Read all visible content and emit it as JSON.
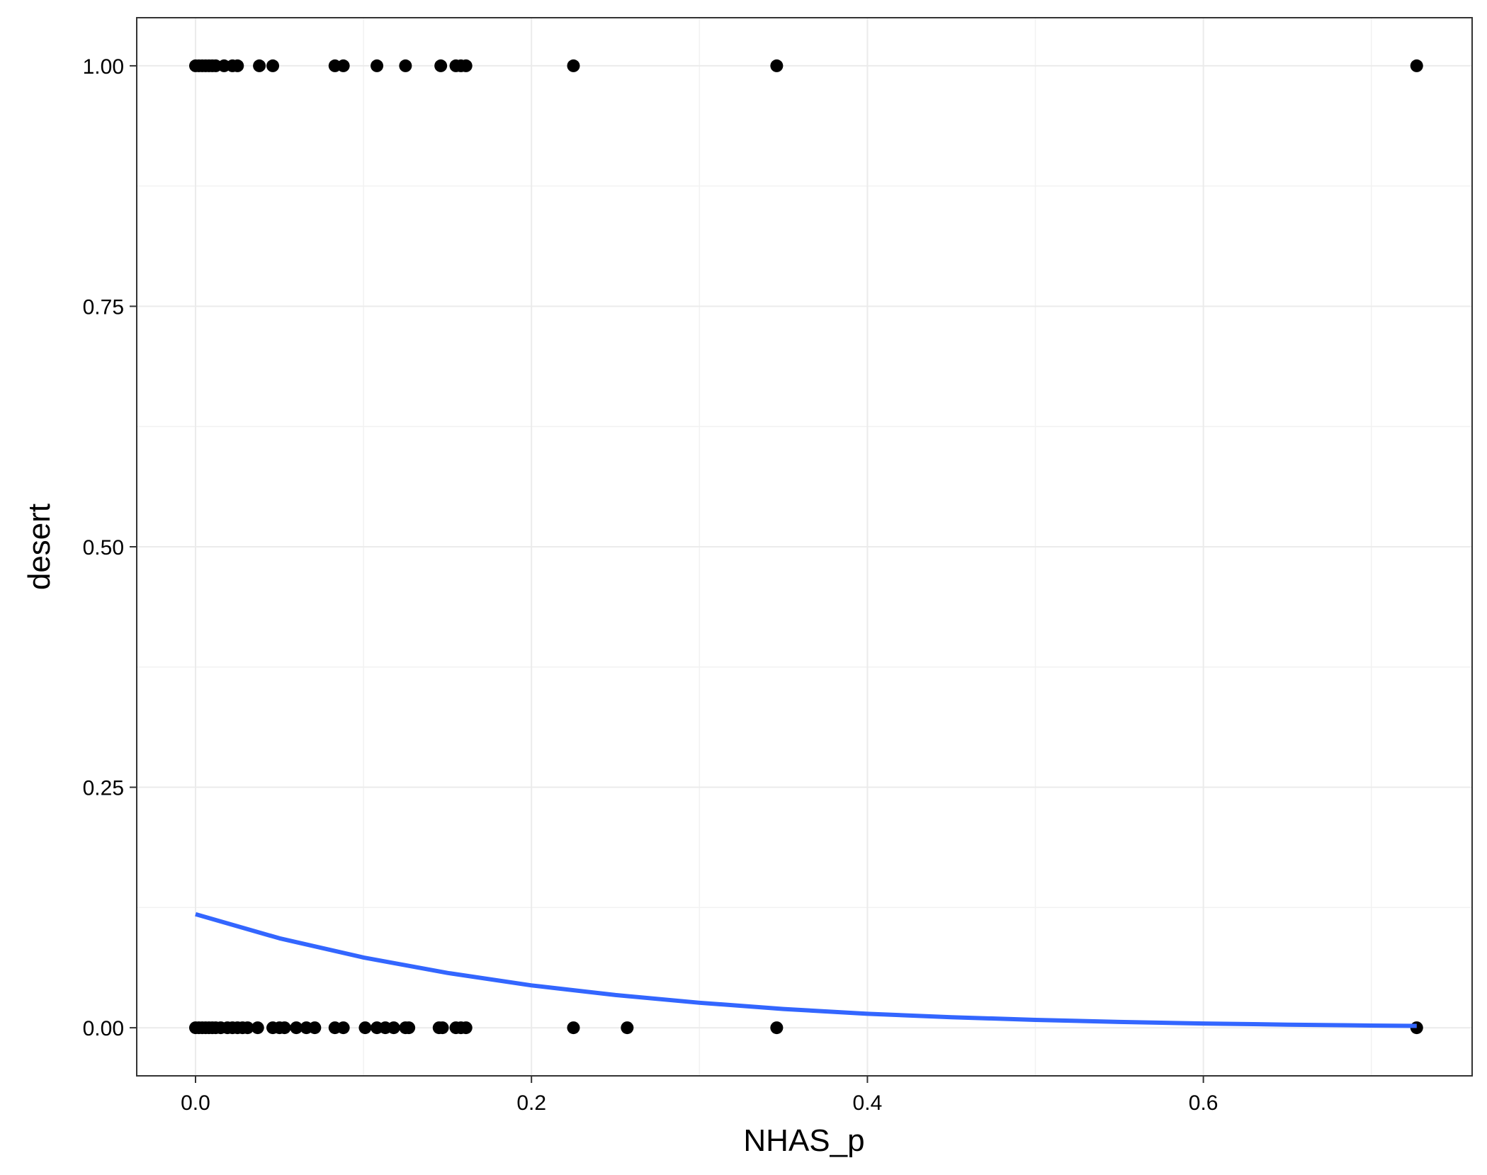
{
  "chart_data": {
    "type": "scatter",
    "title": "",
    "xlabel": "NHAS_p",
    "ylabel": "desert",
    "xlim": [
      -0.035,
      0.76
    ],
    "ylim": [
      -0.05,
      1.05
    ],
    "x_ticks": [
      0.0,
      0.2,
      0.4,
      0.6
    ],
    "x_tick_labels": [
      "0.0",
      "0.2",
      "0.4",
      "0.6"
    ],
    "x_minor_ticks": [
      0.1,
      0.3,
      0.5,
      0.7
    ],
    "y_ticks": [
      0.0,
      0.25,
      0.5,
      0.75,
      1.0
    ],
    "y_tick_labels": [
      "0.00",
      "0.25",
      "0.50",
      "0.75",
      "1.00"
    ],
    "y_minor_ticks": [
      0.125,
      0.375,
      0.625,
      0.875
    ],
    "grid": true,
    "point_color": "#000000",
    "line_color": "#3366FF",
    "series": [
      {
        "type": "scatter",
        "y": 1,
        "x": [
          0.0,
          0.002,
          0.004,
          0.006,
          0.008,
          0.01,
          0.012,
          0.017,
          0.022,
          0.025,
          0.038,
          0.046,
          0.083,
          0.088,
          0.108,
          0.125,
          0.146,
          0.155,
          0.158,
          0.161,
          0.225,
          0.346,
          0.727
        ]
      },
      {
        "type": "scatter",
        "y": 0,
        "x": [
          0.0,
          0.002,
          0.004,
          0.006,
          0.008,
          0.01,
          0.012,
          0.015,
          0.019,
          0.022,
          0.025,
          0.028,
          0.031,
          0.037,
          0.046,
          0.05,
          0.053,
          0.06,
          0.066,
          0.071,
          0.083,
          0.088,
          0.101,
          0.108,
          0.113,
          0.118,
          0.125,
          0.127,
          0.145,
          0.147,
          0.155,
          0.158,
          0.161,
          0.225,
          0.257,
          0.346,
          0.727
        ]
      },
      {
        "type": "line",
        "x": [
          0.0,
          0.05,
          0.1,
          0.15,
          0.2,
          0.25,
          0.3,
          0.35,
          0.4,
          0.45,
          0.5,
          0.55,
          0.6,
          0.65,
          0.7,
          0.727
        ],
        "y": [
          0.118,
          0.093,
          0.073,
          0.057,
          0.044,
          0.034,
          0.026,
          0.0195,
          0.0145,
          0.011,
          0.0082,
          0.006,
          0.0044,
          0.0032,
          0.0023,
          0.0019
        ]
      }
    ]
  }
}
